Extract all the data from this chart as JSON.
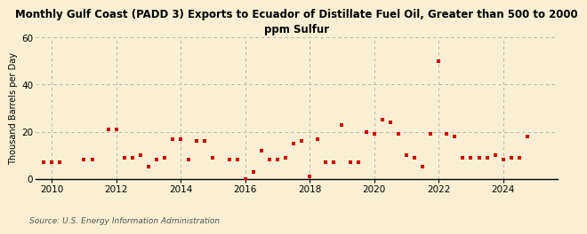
{
  "title": "Monthly Gulf Coast (PADD 3) Exports to Ecuador of Distillate Fuel Oil, Greater than 500 to 2000\nppm Sulfur",
  "ylabel": "Thousand Barrels per Day",
  "source": "Source: U.S. Energy Information Administration",
  "bg_color": "#faefd4",
  "marker_color": "#cc0000",
  "ylim": [
    0,
    60
  ],
  "yticks": [
    0,
    20,
    40,
    60
  ],
  "xlim": [
    2009.5,
    2025.7
  ],
  "xticks": [
    2010,
    2012,
    2014,
    2016,
    2018,
    2020,
    2022,
    2024
  ],
  "data_x": [
    2009.75,
    2010.0,
    2010.25,
    2011.0,
    2011.25,
    2011.75,
    2012.0,
    2012.25,
    2012.5,
    2012.75,
    2013.0,
    2013.25,
    2013.5,
    2013.75,
    2014.0,
    2014.25,
    2014.5,
    2014.75,
    2015.0,
    2015.5,
    2015.75,
    2016.0,
    2016.25,
    2016.5,
    2016.75,
    2017.0,
    2017.25,
    2017.5,
    2017.75,
    2018.0,
    2018.25,
    2018.5,
    2018.75,
    2019.0,
    2019.25,
    2019.5,
    2019.75,
    2020.0,
    2020.25,
    2020.5,
    2020.75,
    2021.0,
    2021.25,
    2021.5,
    2021.75,
    2022.0,
    2022.25,
    2022.5,
    2022.75,
    2023.0,
    2023.25,
    2023.5,
    2023.75,
    2024.0,
    2024.25,
    2024.5,
    2024.75
  ],
  "data_y": [
    7,
    7,
    7,
    8,
    8,
    21,
    21,
    9,
    9,
    10,
    5,
    8,
    9,
    17,
    17,
    8,
    16,
    16,
    9,
    8,
    8,
    0,
    3,
    12,
    8,
    8,
    9,
    15,
    16,
    1,
    17,
    7,
    7,
    23,
    7,
    7,
    20,
    19,
    25,
    24,
    19,
    10,
    9,
    5,
    19,
    50,
    19,
    18,
    9,
    9,
    9,
    9,
    10,
    8,
    9,
    9,
    18
  ],
  "title_fontsize": 8.5,
  "ylabel_fontsize": 7,
  "tick_fontsize": 7.5,
  "source_fontsize": 6.5,
  "marker_size": 10
}
